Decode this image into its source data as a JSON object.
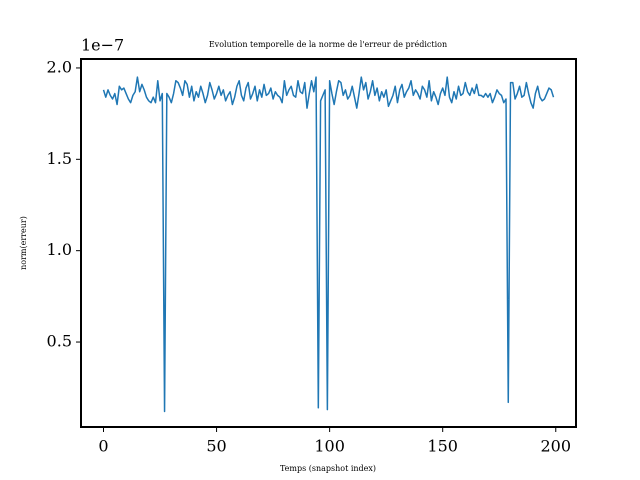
{
  "chart_data": {
    "type": "line",
    "title": "Evolution temporelle de la norme de l'erreur de prédiction",
    "x_label": "Temps (snapshot index)",
    "y_label": "norm(erreur)",
    "y_offset_label": "1e−7",
    "x": [
      0,
      1,
      2,
      3,
      4,
      5,
      6,
      7,
      8,
      9,
      10,
      11,
      12,
      13,
      14,
      15,
      16,
      17,
      18,
      19,
      20,
      21,
      22,
      23,
      24,
      25,
      26,
      27,
      28,
      29,
      30,
      31,
      32,
      33,
      34,
      35,
      36,
      37,
      38,
      39,
      40,
      41,
      42,
      43,
      44,
      45,
      46,
      47,
      48,
      49,
      50,
      51,
      52,
      53,
      54,
      55,
      56,
      57,
      58,
      59,
      60,
      61,
      62,
      63,
      64,
      65,
      66,
      67,
      68,
      69,
      70,
      71,
      72,
      73,
      74,
      75,
      76,
      77,
      78,
      79,
      80,
      81,
      82,
      83,
      84,
      85,
      86,
      87,
      88,
      89,
      90,
      91,
      92,
      93,
      94,
      95,
      96,
      97,
      98,
      99,
      100,
      101,
      102,
      103,
      104,
      105,
      106,
      107,
      108,
      109,
      110,
      111,
      112,
      113,
      114,
      115,
      116,
      117,
      118,
      119,
      120,
      121,
      122,
      123,
      124,
      125,
      126,
      127,
      128,
      129,
      130,
      131,
      132,
      133,
      134,
      135,
      136,
      137,
      138,
      139,
      140,
      141,
      142,
      143,
      144,
      145,
      146,
      147,
      148,
      149,
      150,
      151,
      152,
      153,
      154,
      155,
      156,
      157,
      158,
      159,
      160,
      161,
      162,
      163,
      164,
      165,
      166,
      167,
      168,
      169,
      170,
      171,
      172,
      173,
      174,
      175,
      176,
      177,
      178,
      179,
      180,
      181,
      182,
      183,
      184,
      185,
      186,
      187,
      188,
      189,
      190,
      191,
      192,
      193,
      194,
      195,
      196,
      197,
      198,
      199
    ],
    "series": [
      {
        "color": "#1f77b4",
        "values": [
          1.88,
          1.84,
          1.88,
          1.85,
          1.83,
          1.86,
          1.8,
          1.9,
          1.88,
          1.89,
          1.86,
          1.83,
          1.81,
          1.85,
          1.87,
          1.95,
          1.87,
          1.91,
          1.88,
          1.84,
          1.82,
          1.81,
          1.84,
          1.81,
          1.93,
          1.82,
          1.86,
          0.12,
          1.86,
          1.84,
          1.81,
          1.86,
          1.93,
          1.92,
          1.89,
          1.85,
          1.93,
          1.91,
          1.84,
          1.9,
          1.82,
          1.87,
          1.84,
          1.9,
          1.86,
          1.81,
          1.85,
          1.92,
          1.88,
          1.83,
          1.86,
          1.9,
          1.85,
          1.88,
          1.82,
          1.85,
          1.87,
          1.8,
          1.84,
          1.9,
          1.93,
          1.85,
          1.82,
          1.89,
          1.92,
          1.83,
          1.86,
          1.9,
          1.82,
          1.88,
          1.84,
          1.91,
          1.85,
          1.86,
          1.89,
          1.83,
          1.87,
          1.85,
          1.84,
          1.81,
          1.93,
          1.85,
          1.88,
          1.9,
          1.85,
          1.84,
          1.93,
          1.87,
          1.86,
          1.92,
          1.78,
          1.86,
          1.93,
          1.87,
          1.95,
          0.14,
          1.82,
          1.85,
          1.88,
          0.13,
          1.93,
          1.86,
          1.8,
          1.87,
          1.93,
          1.92,
          1.85,
          1.88,
          1.83,
          1.85,
          1.9,
          1.84,
          1.78,
          1.86,
          1.95,
          1.88,
          1.92,
          1.83,
          1.87,
          1.93,
          1.85,
          1.89,
          1.82,
          1.87,
          1.84,
          1.88,
          1.79,
          1.82,
          1.85,
          1.9,
          1.81,
          1.88,
          1.91,
          1.84,
          1.87,
          1.89,
          1.93,
          1.85,
          1.88,
          1.86,
          1.83,
          1.9,
          1.88,
          1.84,
          1.93,
          1.82,
          1.87,
          1.84,
          1.8,
          1.86,
          1.89,
          1.85,
          1.95,
          1.84,
          1.81,
          1.87,
          1.83,
          1.9,
          1.85,
          1.86,
          1.92,
          1.87,
          1.85,
          1.89,
          1.86,
          1.91,
          1.85,
          1.85,
          1.84,
          1.86,
          1.84,
          1.86,
          1.81,
          1.84,
          1.88,
          1.86,
          1.85,
          1.81,
          1.83,
          0.17,
          1.92,
          1.92,
          1.83,
          1.86,
          1.9,
          1.84,
          1.85,
          1.92,
          1.86,
          1.81,
          1.78,
          1.86,
          1.9,
          1.84,
          1.82,
          1.83,
          1.86,
          1.89,
          1.88,
          1.84
        ]
      }
    ],
    "xlim": [
      -9.95,
      208.95
    ],
    "xticks": [
      0,
      50,
      100,
      150,
      200
    ],
    "ylim": [
      0.035,
      2.049
    ],
    "yticks": [
      0.5,
      {
        "value": 1,
        "label": "1.0"
      },
      1.5,
      {
        "value": 2,
        "label": "2.0"
      }
    ]
  }
}
